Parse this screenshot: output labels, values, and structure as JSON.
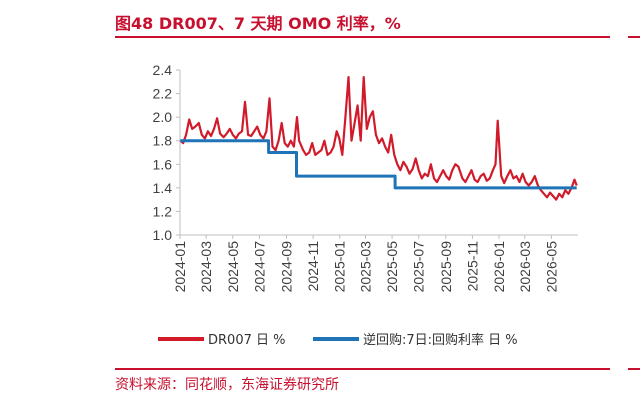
{
  "figure": {
    "title": "图48  DR007、7 天期 OMO 利率，%",
    "source": "资料来源：同花顺，东海证券研究所"
  },
  "colors": {
    "accent": "#c8102e",
    "dr007": "#d11a2a",
    "omo": "#1f73b7",
    "axis": "#bfbfbf"
  },
  "chart_data": {
    "type": "line",
    "title": "",
    "xlabel": "",
    "ylabel": "",
    "ylim": [
      1.0,
      2.4
    ],
    "yticks": [
      "1.0",
      "1.2",
      "1.4",
      "1.6",
      "1.8",
      "2.0",
      "2.2",
      "2.4"
    ],
    "xlim": [
      "2024-01",
      "2026-07"
    ],
    "xticks": [
      "2024-01",
      "2024-03",
      "2024-05",
      "2024-07",
      "2024-09",
      "2024-11",
      "2025-01",
      "2025-03",
      "2025-05",
      "2025-07",
      "2025-09",
      "2025-11",
      "2026-01",
      "2026-03",
      "2026-05"
    ],
    "grid": false,
    "legend_position": "bottom",
    "series": [
      {
        "name": "DR007 日 %",
        "color": "#d11a2a",
        "points": [
          [
            "2024-01-02",
            1.8
          ],
          [
            "2024-01-08",
            1.78
          ],
          [
            "2024-01-15",
            1.85
          ],
          [
            "2024-01-22",
            1.98
          ],
          [
            "2024-01-29",
            1.9
          ],
          [
            "2024-02-05",
            1.92
          ],
          [
            "2024-02-13",
            1.95
          ],
          [
            "2024-02-20",
            1.85
          ],
          [
            "2024-02-27",
            1.82
          ],
          [
            "2024-03-05",
            1.88
          ],
          [
            "2024-03-12",
            1.84
          ],
          [
            "2024-03-19",
            1.9
          ],
          [
            "2024-03-26",
            1.99
          ],
          [
            "2024-04-02",
            1.86
          ],
          [
            "2024-04-10",
            1.83
          ],
          [
            "2024-04-17",
            1.86
          ],
          [
            "2024-04-24",
            1.9
          ],
          [
            "2024-05-01",
            1.85
          ],
          [
            "2024-05-08",
            1.82
          ],
          [
            "2024-05-15",
            1.86
          ],
          [
            "2024-05-22",
            1.88
          ],
          [
            "2024-05-29",
            2.13
          ],
          [
            "2024-06-05",
            1.85
          ],
          [
            "2024-06-12",
            1.84
          ],
          [
            "2024-06-19",
            1.88
          ],
          [
            "2024-06-26",
            1.92
          ],
          [
            "2024-07-03",
            1.85
          ],
          [
            "2024-07-10",
            1.82
          ],
          [
            "2024-07-17",
            1.88
          ],
          [
            "2024-07-24",
            2.16
          ],
          [
            "2024-07-31",
            1.75
          ],
          [
            "2024-08-07",
            1.72
          ],
          [
            "2024-08-14",
            1.8
          ],
          [
            "2024-08-21",
            1.95
          ],
          [
            "2024-08-28",
            1.78
          ],
          [
            "2024-09-04",
            1.75
          ],
          [
            "2024-09-11",
            1.8
          ],
          [
            "2024-09-18",
            1.75
          ],
          [
            "2024-09-25",
            2.0
          ],
          [
            "2024-09-30",
            1.8
          ],
          [
            "2024-10-09",
            1.72
          ],
          [
            "2024-10-16",
            1.68
          ],
          [
            "2024-10-23",
            1.7
          ],
          [
            "2024-10-30",
            1.78
          ],
          [
            "2024-11-06",
            1.68
          ],
          [
            "2024-11-13",
            1.7
          ],
          [
            "2024-11-20",
            1.72
          ],
          [
            "2024-11-27",
            1.8
          ],
          [
            "2024-12-04",
            1.68
          ],
          [
            "2024-12-11",
            1.7
          ],
          [
            "2024-12-18",
            1.75
          ],
          [
            "2024-12-25",
            1.88
          ],
          [
            "2024-12-31",
            1.82
          ],
          [
            "2025-01-07",
            1.68
          ],
          [
            "2025-01-14",
            2.0
          ],
          [
            "2025-01-21",
            2.34
          ],
          [
            "2025-01-28",
            1.8
          ],
          [
            "2025-02-04",
            1.95
          ],
          [
            "2025-02-11",
            2.1
          ],
          [
            "2025-02-18",
            1.8
          ],
          [
            "2025-02-25",
            2.34
          ],
          [
            "2025-03-04",
            1.9
          ],
          [
            "2025-03-11",
            2.0
          ],
          [
            "2025-03-18",
            2.05
          ],
          [
            "2025-03-25",
            1.85
          ],
          [
            "2025-04-01",
            1.78
          ],
          [
            "2025-04-08",
            1.82
          ],
          [
            "2025-04-15",
            1.75
          ],
          [
            "2025-04-22",
            1.7
          ],
          [
            "2025-04-29",
            1.85
          ],
          [
            "2025-05-06",
            1.68
          ],
          [
            "2025-05-13",
            1.6
          ],
          [
            "2025-05-20",
            1.55
          ],
          [
            "2025-05-27",
            1.62
          ],
          [
            "2025-06-03",
            1.58
          ],
          [
            "2025-06-10",
            1.52
          ],
          [
            "2025-06-17",
            1.56
          ],
          [
            "2025-06-24",
            1.65
          ],
          [
            "2025-07-01",
            1.55
          ],
          [
            "2025-07-08",
            1.48
          ],
          [
            "2025-07-15",
            1.52
          ],
          [
            "2025-07-22",
            1.5
          ],
          [
            "2025-07-29",
            1.6
          ],
          [
            "2025-08-05",
            1.48
          ],
          [
            "2025-08-12",
            1.45
          ],
          [
            "2025-08-19",
            1.5
          ],
          [
            "2025-08-26",
            1.55
          ],
          [
            "2025-09-02",
            1.5
          ],
          [
            "2025-09-09",
            1.47
          ],
          [
            "2025-09-16",
            1.55
          ],
          [
            "2025-09-23",
            1.6
          ],
          [
            "2025-09-30",
            1.58
          ],
          [
            "2025-10-09",
            1.48
          ],
          [
            "2025-10-16",
            1.45
          ],
          [
            "2025-10-23",
            1.5
          ],
          [
            "2025-10-30",
            1.55
          ],
          [
            "2025-11-06",
            1.47
          ],
          [
            "2025-11-13",
            1.45
          ],
          [
            "2025-11-20",
            1.5
          ],
          [
            "2025-11-27",
            1.52
          ],
          [
            "2025-12-04",
            1.46
          ],
          [
            "2025-12-11",
            1.48
          ],
          [
            "2025-12-18",
            1.55
          ],
          [
            "2025-12-24",
            1.6
          ],
          [
            "2025-12-29",
            1.97
          ],
          [
            "2026-01-06",
            1.5
          ],
          [
            "2026-01-13",
            1.44
          ],
          [
            "2026-01-20",
            1.5
          ],
          [
            "2026-01-27",
            1.55
          ],
          [
            "2026-02-03",
            1.48
          ],
          [
            "2026-02-10",
            1.5
          ],
          [
            "2026-02-17",
            1.45
          ],
          [
            "2026-02-24",
            1.52
          ],
          [
            "2026-03-03",
            1.45
          ],
          [
            "2026-03-10",
            1.42
          ],
          [
            "2026-03-17",
            1.45
          ],
          [
            "2026-03-24",
            1.5
          ],
          [
            "2026-03-31",
            1.42
          ],
          [
            "2026-04-07",
            1.38
          ],
          [
            "2026-04-14",
            1.35
          ],
          [
            "2026-04-21",
            1.32
          ],
          [
            "2026-04-28",
            1.36
          ],
          [
            "2026-05-05",
            1.33
          ],
          [
            "2026-05-12",
            1.3
          ],
          [
            "2026-05-19",
            1.35
          ],
          [
            "2026-05-26",
            1.32
          ],
          [
            "2026-06-02",
            1.38
          ],
          [
            "2026-06-09",
            1.35
          ],
          [
            "2026-06-16",
            1.4
          ],
          [
            "2026-06-23",
            1.47
          ],
          [
            "2026-06-28",
            1.42
          ]
        ]
      },
      {
        "name": "逆回购:7日:回购利率 日 %",
        "color": "#1f73b7",
        "step": true,
        "points": [
          [
            "2024-01-02",
            1.8
          ],
          [
            "2024-07-22",
            1.7
          ],
          [
            "2024-09-24",
            1.5
          ],
          [
            "2025-05-08",
            1.4
          ],
          [
            "2026-06-28",
            1.4
          ]
        ]
      }
    ]
  }
}
